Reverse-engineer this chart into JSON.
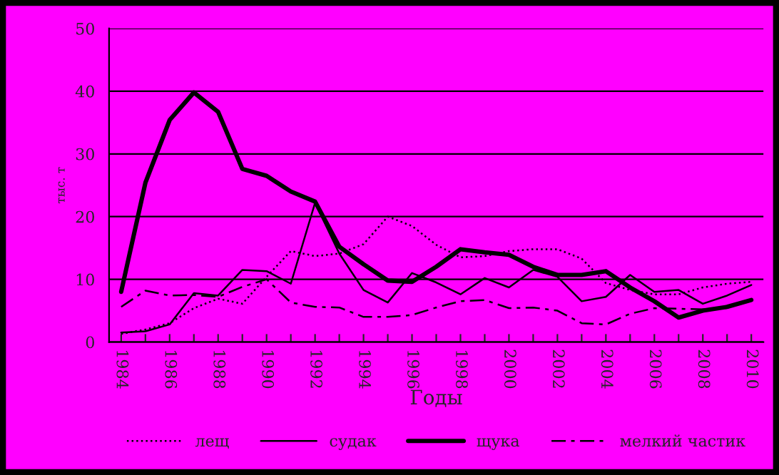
{
  "chart_data": {
    "type": "line",
    "xlabel": "Годы",
    "ylabel": "тыс. т",
    "categories": [
      "1984",
      null,
      "1986",
      null,
      "1988",
      null,
      "1990",
      null,
      "1992",
      null,
      "1994",
      null,
      "1996",
      null,
      "1998",
      null,
      "2000",
      null,
      "2002",
      null,
      "2004",
      null,
      "2006",
      null,
      "2008",
      null,
      "2010"
    ],
    "series": [
      {
        "name": "лещ",
        "color": "#000000",
        "line_style": "dotted",
        "values": [
          1.3,
          2,
          3,
          5.4,
          6.9,
          6.1,
          10.4,
          14.5,
          13.7,
          14.1,
          15.6,
          20,
          18.5,
          15.5,
          13.5,
          13.7,
          14.5,
          14.8,
          14.8,
          13.3,
          9.4,
          8.3,
          7.6,
          7.6,
          8.7,
          9.3,
          9.6
        ]
      },
      {
        "name": "судак",
        "color": "#000000",
        "line_style": "solid",
        "values": [
          1.5,
          1.7,
          2.8,
          7.8,
          7.4,
          11.5,
          11.3,
          9.3,
          22.2,
          14.1,
          8.3,
          6.3,
          11,
          9.5,
          7.6,
          10.2,
          8.7,
          11.5,
          10.4,
          6.5,
          7.2,
          10.7,
          8,
          8.3,
          6.1,
          7.4,
          9.1
        ]
      },
      {
        "name": "щука",
        "color": "#000000",
        "line_style": "solid",
        "values": [
          8,
          25.4,
          35.4,
          39.8,
          36.7,
          27.6,
          26.5,
          24,
          22.4,
          15.2,
          12.4,
          9.8,
          9.6,
          12,
          14.8,
          14.3,
          13.9,
          12,
          10.7,
          10.7,
          11.3,
          8.7,
          6.5,
          3.9,
          5,
          5.6,
          6.7
        ]
      },
      {
        "name": "мелкий частик",
        "color": "#000000",
        "line_style": "dashed",
        "values": [
          5.6,
          8.2,
          7.4,
          7.5,
          7.2,
          8.8,
          10,
          6.3,
          5.6,
          5.5,
          4,
          4,
          4.3,
          5.5,
          6.5,
          6.7,
          5.4,
          5.5,
          5,
          3,
          2.8,
          4.5,
          5.4,
          5.3,
          5.2,
          5.5,
          6.7
        ]
      }
    ],
    "ylim": [
      0,
      50
    ],
    "yticks": [
      0,
      10,
      20,
      30,
      40,
      50
    ],
    "grid": "y",
    "legend": "bottom"
  }
}
